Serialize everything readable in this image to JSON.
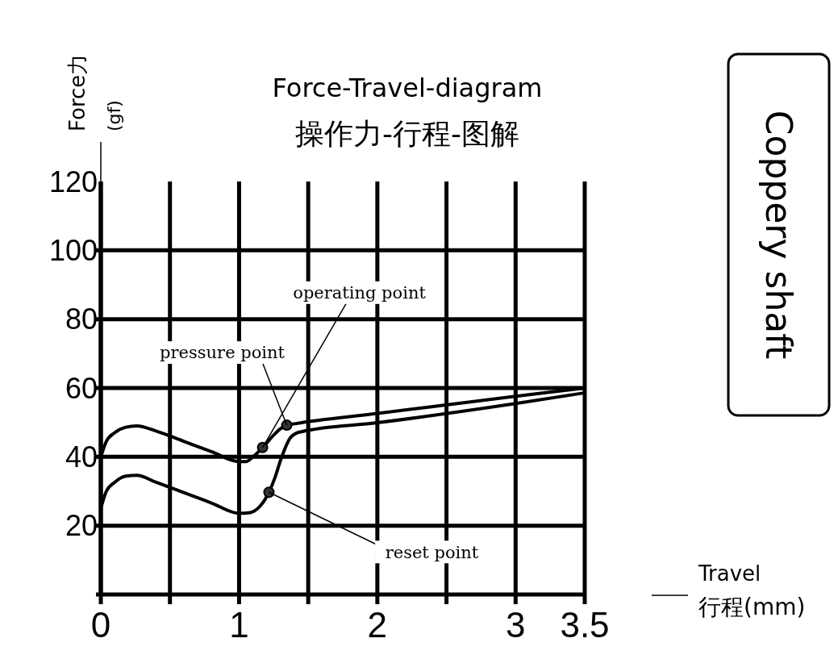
{
  "chart_data": {
    "type": "line",
    "title": "Force-Travel-diagram",
    "subtitle": "操作力-行程-图解",
    "ylabel": "Force力\n(gf)",
    "xlabel": "Travel\n行程(mm)",
    "xlim": [
      0,
      3.5
    ],
    "xticks": [
      0,
      1,
      2,
      3,
      3.5
    ],
    "ylim": [
      0,
      120
    ],
    "yticks": [
      {
        "value": 0,
        "label": null
      },
      20,
      40,
      60,
      80,
      100,
      120
    ],
    "grid": true,
    "series": [
      {
        "color": "#000000",
        "x": [
          0,
          0.04,
          0.1,
          0.18,
          0.26,
          0.4,
          0.6,
          0.8,
          1.0,
          1.05,
          1.1,
          1.17,
          1.25,
          1.3,
          1.345,
          1.4,
          2.0,
          3.0,
          3.5
        ],
        "values": [
          40,
          44.5,
          47,
          48.6,
          49,
          47.5,
          44.5,
          41.5,
          38.6,
          38.6,
          40,
          42.7,
          46.3,
          48.2,
          49.2,
          49.6,
          52.6,
          57.6,
          60
        ]
      },
      {
        "color": "#000000",
        "x": [
          0,
          0.04,
          0.1,
          0.18,
          0.26,
          0.4,
          0.6,
          0.8,
          1.0,
          1.08,
          1.15,
          1.216,
          1.26,
          1.3,
          1.37,
          1.42,
          1.45,
          2.0,
          3.0,
          3.5
        ],
        "values": [
          25,
          30,
          32.6,
          34.4,
          34.6,
          32.6,
          29.6,
          26.6,
          23.6,
          23.8,
          25.6,
          29.7,
          34,
          39,
          45.5,
          47,
          47.3,
          49.9,
          55.5,
          58.6
        ]
      },
      {
        "type": "scatter",
        "marker": "circle",
        "color": "#333333",
        "x": [
          1.17,
          1.345,
          1.216
        ],
        "values": [
          42.7,
          49.2,
          29.7
        ]
      }
    ],
    "annotations": [
      {
        "text": "pressure point",
        "x": 1.345,
        "y": 49.2
      },
      {
        "text": "operating point",
        "x": 1.17,
        "y": 42.7
      },
      {
        "text": "reset point",
        "x": 1.216,
        "y": 29.7
      },
      "Coppery shaft"
    ]
  }
}
